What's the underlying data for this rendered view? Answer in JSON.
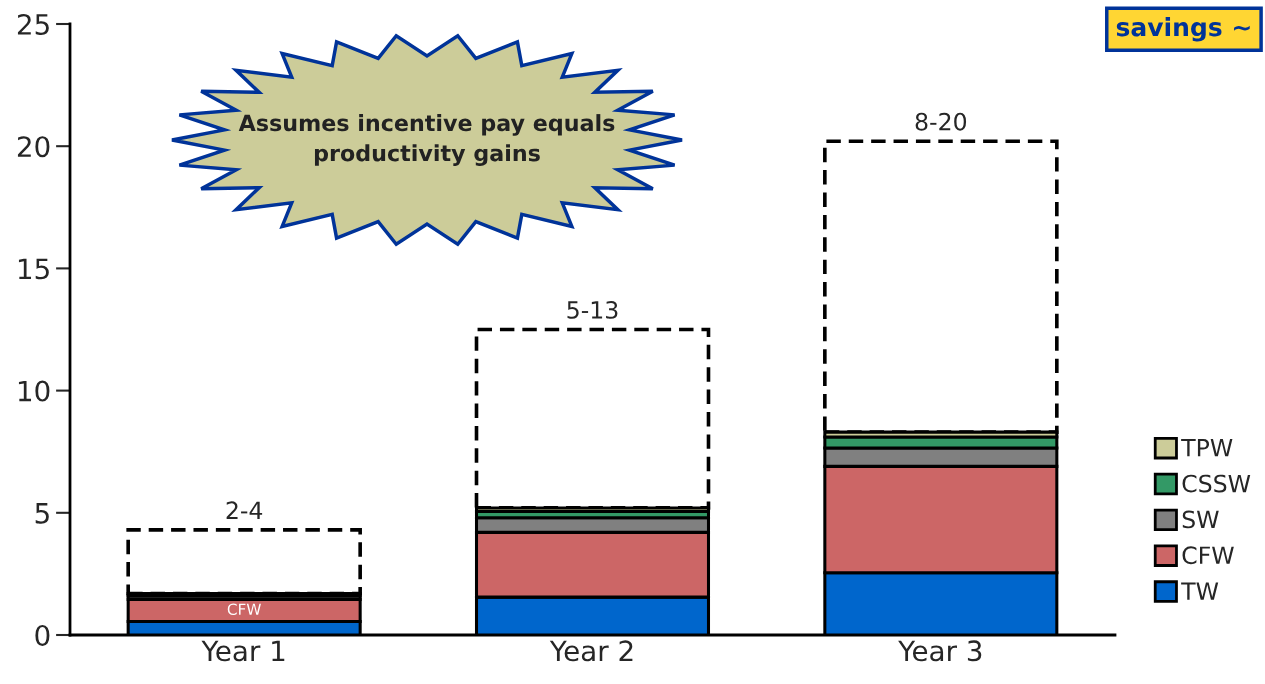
{
  "chart_data": {
    "type": "bar",
    "stacked": true,
    "categories": [
      "Year 1",
      "Year 2",
      "Year 3"
    ],
    "series": [
      {
        "name": "TW",
        "color": "#0066cc",
        "values": [
          0.55,
          1.55,
          2.55
        ]
      },
      {
        "name": "CFW",
        "color": "#cc6666",
        "values": [
          0.9,
          2.65,
          4.35
        ]
      },
      {
        "name": "SW",
        "color": "#808080",
        "values": [
          0.15,
          0.6,
          0.75
        ]
      },
      {
        "name": "CSSW",
        "color": "#339966",
        "values": [
          null,
          0.25,
          0.45
        ]
      },
      {
        "name": "TPW",
        "color": "#cccc99",
        "values": [
          0.1,
          0.15,
          0.2
        ]
      },
      {
        "color": "#ffffff",
        "line_style": "dashed",
        "values": [
          2.6,
          7.3,
          11.9
        ]
      }
    ],
    "totals": [
      "2-4",
      "5-13",
      "8-20"
    ],
    "ylim": [
      0,
      25
    ],
    "yticks": [
      0,
      5,
      10,
      15,
      20,
      25
    ],
    "grid": false,
    "legend": "right",
    "annotations": [
      "Assumes incentive pay equals productivity gains",
      "savings ~",
      "CFW"
    ]
  }
}
